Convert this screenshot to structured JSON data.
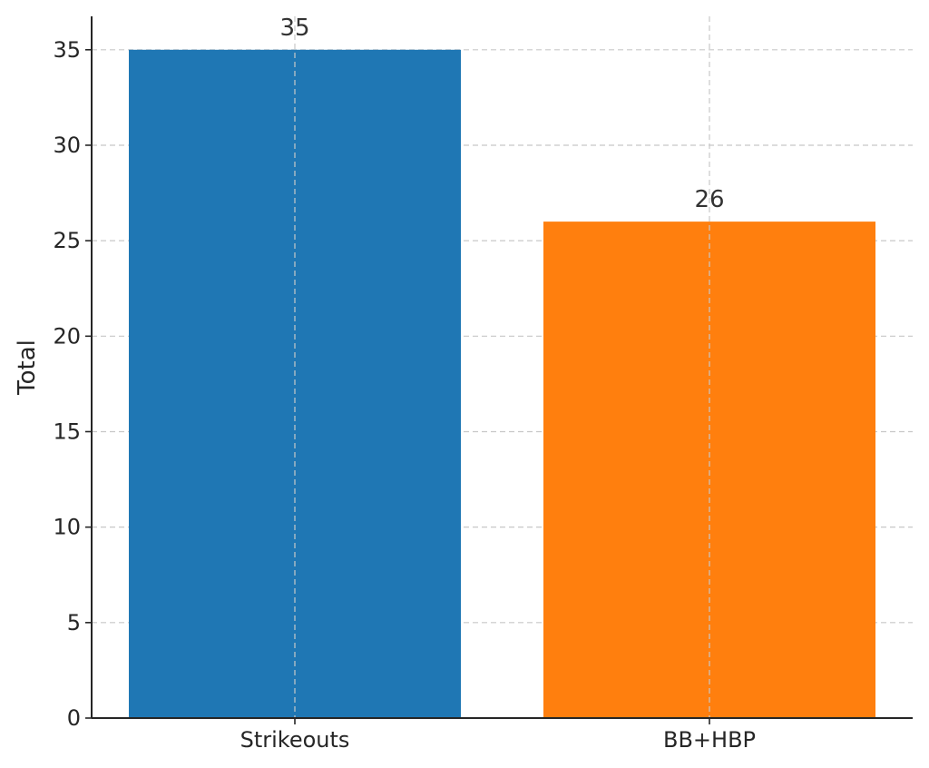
{
  "chart_data": {
    "type": "bar",
    "title": "",
    "xlabel": "",
    "ylabel": "Total",
    "categories": [
      "Strikeouts",
      "BB+HBP"
    ],
    "values": [
      35,
      26
    ],
    "colors": [
      "#1f77b4",
      "#ff7f0e"
    ],
    "data_labels": [
      "35",
      "26"
    ],
    "ylim": [
      0,
      36.75
    ],
    "yticks": [
      0,
      5,
      10,
      15,
      20,
      25,
      30,
      35
    ],
    "grid": true,
    "legend": false
  }
}
